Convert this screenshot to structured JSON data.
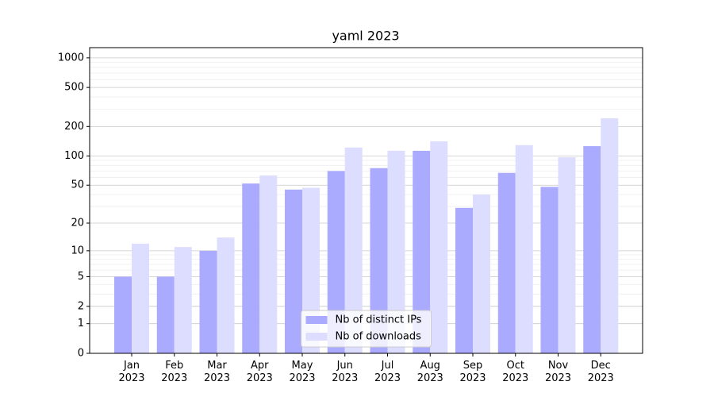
{
  "chart_data": {
    "type": "bar",
    "title": "yaml 2023",
    "categories": [
      "Jan\n2023",
      "Feb\n2023",
      "Mar\n2023",
      "Apr\n2023",
      "May\n2023",
      "Jun\n2023",
      "Jul\n2023",
      "Aug\n2023",
      "Sep\n2023",
      "Oct\n2023",
      "Nov\n2023",
      "Dec\n2023"
    ],
    "series": [
      {
        "name": "Nb of distinct IPs",
        "color": "#aaaaff",
        "values": [
          5,
          5,
          10,
          52,
          45,
          70,
          75,
          113,
          29,
          67,
          48,
          126
        ]
      },
      {
        "name": "Nb of downloads",
        "color": "#ddddff",
        "values": [
          12,
          11,
          14,
          63,
          47,
          122,
          113,
          141,
          40,
          129,
          97,
          243
        ]
      }
    ],
    "yscale": "log1p",
    "ylim": [
      0,
      1270
    ],
    "yticks": [
      0,
      1,
      2,
      5,
      10,
      20,
      50,
      100,
      200,
      500,
      1000
    ],
    "minor_yticks": [
      3,
      4,
      6,
      7,
      8,
      9,
      30,
      40,
      60,
      70,
      80,
      90,
      300,
      400,
      600,
      700,
      800,
      900
    ],
    "grid": true,
    "legend": "lower center"
  }
}
